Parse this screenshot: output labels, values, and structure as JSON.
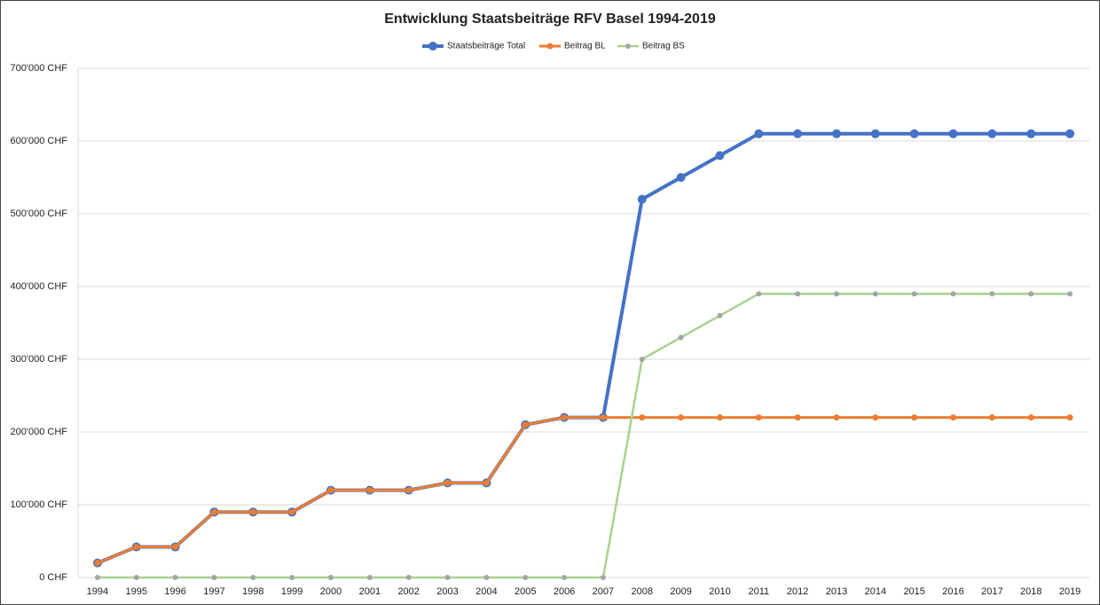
{
  "chart_data": {
    "type": "line",
    "title": "Entwicklung Staatsbeiträge RFV Basel 1994-2019",
    "categories": [
      "1994",
      "1995",
      "1996",
      "1997",
      "1998",
      "1999",
      "2000",
      "2001",
      "2002",
      "2003",
      "2004",
      "2005",
      "2006",
      "2007",
      "2008",
      "2009",
      "2010",
      "2011",
      "2012",
      "2013",
      "2014",
      "2015",
      "2016",
      "2017",
      "2018",
      "2019"
    ],
    "series": [
      {
        "name": "Staatsbeiträge Total",
        "color": "#4472c4",
        "marker_color": "#4472c4",
        "values": [
          20000,
          42000,
          42000,
          90000,
          90000,
          90000,
          120000,
          120000,
          120000,
          130000,
          130000,
          210000,
          220000,
          220000,
          520000,
          550000,
          580000,
          610000,
          610000,
          610000,
          610000,
          610000,
          610000,
          610000,
          610000,
          610000
        ]
      },
      {
        "name": "Beitrag BL",
        "color": "#ed7d31",
        "marker_color": "#ed7d31",
        "values": [
          20000,
          42000,
          42000,
          90000,
          90000,
          90000,
          120000,
          120000,
          120000,
          130000,
          130000,
          210000,
          220000,
          220000,
          220000,
          220000,
          220000,
          220000,
          220000,
          220000,
          220000,
          220000,
          220000,
          220000,
          220000,
          220000
        ]
      },
      {
        "name": "Beitrag BS",
        "color": "#a9d18e",
        "marker_color": "#a5a5a5",
        "values": [
          0,
          0,
          0,
          0,
          0,
          0,
          0,
          0,
          0,
          0,
          0,
          0,
          0,
          0,
          300000,
          330000,
          360000,
          390000,
          390000,
          390000,
          390000,
          390000,
          390000,
          390000,
          390000,
          390000
        ]
      }
    ],
    "ylim": [
      0,
      700000
    ],
    "yticks": [
      {
        "value": 0,
        "label": "0 CHF"
      },
      {
        "value": 100000,
        "label": "100'000 CHF"
      },
      {
        "value": 200000,
        "label": "200'000 CHF"
      },
      {
        "value": 300000,
        "label": "300'000 CHF"
      },
      {
        "value": 400000,
        "label": "400'000 CHF"
      },
      {
        "value": 500000,
        "label": "500'000 CHF"
      },
      {
        "value": 600000,
        "label": "600'000 CHF"
      },
      {
        "value": 700000,
        "label": "700'000 CHF"
      }
    ],
    "grid": true,
    "legend": "top"
  }
}
